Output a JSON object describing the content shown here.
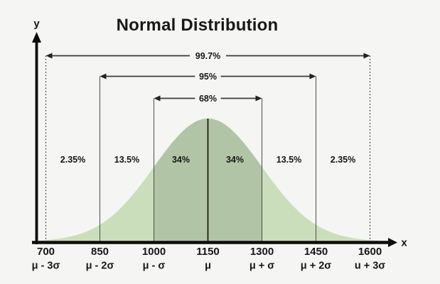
{
  "chart_data": {
    "type": "area",
    "title": "Normal Distribution",
    "xlabel": "x",
    "ylabel": "y",
    "distribution": {
      "mean": 1150,
      "sigma": 150
    },
    "x_range": [
      700,
      1600
    ],
    "x_ticks": [
      {
        "value": 700,
        "label": "700",
        "sublabel": "μ - 3σ"
      },
      {
        "value": 850,
        "label": "850",
        "sublabel": "μ - 2σ"
      },
      {
        "value": 1000,
        "label": "1000",
        "sublabel": "μ - σ"
      },
      {
        "value": 1150,
        "label": "1150",
        "sublabel": "μ"
      },
      {
        "value": 1300,
        "label": "1300",
        "sublabel": "μ + σ"
      },
      {
        "value": 1450,
        "label": "1450",
        "sublabel": "μ + 2σ"
      },
      {
        "value": 1600,
        "label": "1600",
        "sublabel": "u + 3σ"
      }
    ],
    "regions": [
      {
        "from": 700,
        "to": 850,
        "label": "2.35%"
      },
      {
        "from": 850,
        "to": 1000,
        "label": "13.5%"
      },
      {
        "from": 1000,
        "to": 1150,
        "label": "34%"
      },
      {
        "from": 1150,
        "to": 1300,
        "label": "34%"
      },
      {
        "from": 1300,
        "to": 1450,
        "label": "13.5%"
      },
      {
        "from": 1450,
        "to": 1600,
        "label": "2.35%"
      }
    ],
    "intervals": [
      {
        "from": 700,
        "to": 1600,
        "label": "99.7%",
        "line_style": "dotted"
      },
      {
        "from": 850,
        "to": 1450,
        "label": "95%",
        "line_style": "solid"
      },
      {
        "from": 1000,
        "to": 1300,
        "label": "68%",
        "line_style": "solid"
      }
    ],
    "highlight_region": {
      "from": 1000,
      "to": 1300
    },
    "colors": {
      "background": "#f5f5f3",
      "curve_fill": "#cadebc",
      "highlight_fill": "#b2c4a6",
      "axis": "#0d0d0d",
      "guide_line": "#4a4a4a",
      "mean_line": "#161616",
      "arrow": "#3a3a3a",
      "text": "#161616"
    }
  }
}
